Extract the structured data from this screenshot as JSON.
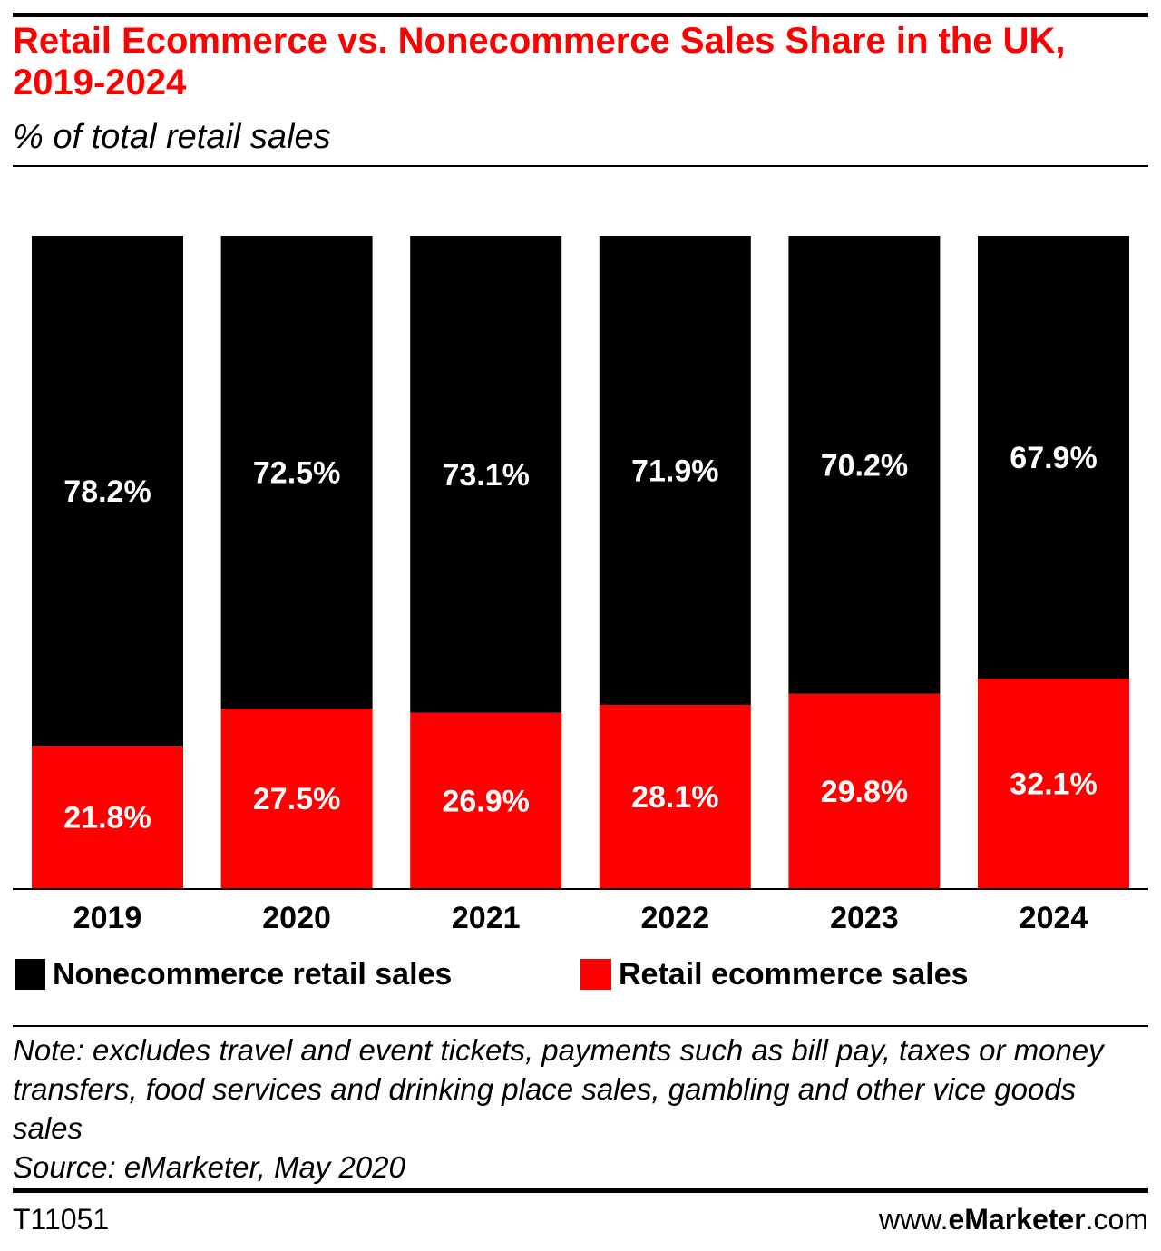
{
  "chart_data": {
    "type": "bar",
    "stacked": true,
    "title": "Retail Ecommerce vs. Nonecommerce Sales Share in the UK, 2019-2024",
    "subtitle": "% of total retail sales",
    "categories": [
      "2019",
      "2020",
      "2021",
      "2022",
      "2023",
      "2024"
    ],
    "series": [
      {
        "name": "Retail ecommerce sales",
        "color": "#ff0000",
        "values": [
          21.8,
          27.5,
          26.9,
          28.1,
          29.8,
          32.1
        ],
        "labels": [
          "21.8%",
          "27.5%",
          "26.9%",
          "28.1%",
          "29.8%",
          "32.1%"
        ]
      },
      {
        "name": "Nonecommerce retail sales",
        "color": "#000000",
        "values": [
          78.2,
          72.5,
          73.1,
          71.9,
          70.2,
          67.9
        ],
        "labels": [
          "78.2%",
          "72.5%",
          "73.1%",
          "71.9%",
          "70.2%",
          "67.9%"
        ]
      }
    ],
    "ylim": [
      0,
      100
    ],
    "grid": false,
    "legend_position": "bottom",
    "note": "Note: excludes travel and event tickets, payments such as bill pay, taxes or money transfers, food services and drinking place sales, gambling and other vice goods sales",
    "source": "Source: eMarketer, May 2020"
  },
  "legend": {
    "items": [
      {
        "label": "Nonecommerce retail sales",
        "color": "#000000"
      },
      {
        "label": "Retail ecommerce sales",
        "color": "#ff0000"
      }
    ]
  },
  "footer": {
    "chart_id": "T11051",
    "brand_prefix": "www.",
    "brand_bold": "eMarketer",
    "brand_suffix": ".com"
  },
  "colors": {
    "accent": "#ff0000",
    "text": "#000000",
    "label_text": "#ffffff"
  }
}
